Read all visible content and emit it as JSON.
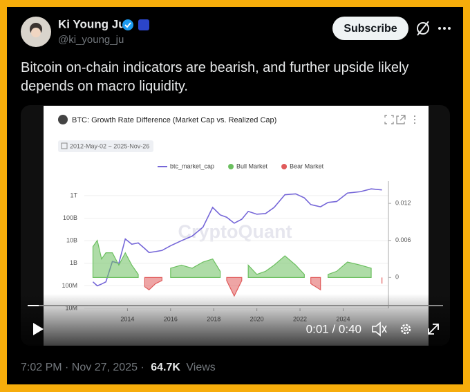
{
  "tweet": {
    "author": "Ki Young Ju",
    "handle": "@ki_young_ju",
    "button": "Subscribe",
    "text": "Bitcoin on-chain indicators are bearish, and further upside likely depends on macro liquidity.",
    "time": "7:02 PM · Nov 27, 2025 ·",
    "views_count": "64.7K",
    "views_label": "Views"
  },
  "video": {
    "time": "0:01 / 0:40"
  },
  "chart_data": {
    "type": "line",
    "title": "BTC: Growth Rate Difference (Market Cap vs. Realized Cap)",
    "date_range": "2012-May-02 ~ 2025-Nov-26",
    "watermark": "CryptoQuant",
    "x": [
      2012.4,
      2012.6,
      2012.8,
      2013.0,
      2013.3,
      2013.6,
      2013.9,
      2014.2,
      2014.5,
      2014.8,
      2015.0,
      2015.3,
      2015.6,
      2016.0,
      2016.5,
      2017.0,
      2017.5,
      2017.95,
      2018.3,
      2018.6,
      2018.95,
      2019.3,
      2019.6,
      2020.0,
      2020.4,
      2020.8,
      2021.3,
      2021.8,
      2022.2,
      2022.5,
      2022.95,
      2023.3,
      2023.7,
      2024.2,
      2024.8,
      2025.3,
      2025.8
    ],
    "series": [
      {
        "name": "btc_market_cap",
        "color": "#7566d8",
        "values": [
          150000000,
          100000000,
          120000000,
          150000000,
          1200000000,
          1000000000,
          12000000000,
          7000000000,
          8000000000,
          4500000000,
          3000000000,
          3300000000,
          3700000000,
          6000000000,
          10000000000,
          16000000000,
          40000000000,
          300000000000,
          140000000000,
          110000000000,
          60000000000,
          90000000000,
          200000000000,
          150000000000,
          160000000000,
          300000000000,
          1100000000000,
          1200000000000,
          800000000000,
          400000000000,
          320000000000,
          500000000000,
          550000000000,
          1300000000000,
          1500000000000,
          2000000000000,
          1800000000000
        ]
      },
      {
        "name": "Bull Market",
        "color": "#6bbf5f",
        "axis": "y2",
        "values": [
          0.005,
          0.006,
          0.003,
          0.004,
          0.004,
          0.002,
          0.004,
          0.002,
          0.0005,
          null,
          null,
          null,
          null,
          0.0015,
          0.002,
          0.0015,
          0.0025,
          0.003,
          0.001,
          null,
          null,
          null,
          0.002,
          0.0005,
          0.001,
          0.002,
          0.0035,
          0.002,
          0.0005,
          null,
          null,
          0.0005,
          0.001,
          0.0025,
          0.002,
          0.0015,
          null
        ]
      },
      {
        "name": "Bear Market",
        "color": "#e05b5b",
        "axis": "y2",
        "values": [
          null,
          null,
          null,
          null,
          null,
          null,
          null,
          null,
          null,
          -0.0015,
          -0.002,
          -0.001,
          -0.0005,
          null,
          null,
          null,
          null,
          null,
          null,
          -0.0005,
          -0.003,
          -0.0005,
          null,
          null,
          null,
          null,
          null,
          null,
          null,
          -0.001,
          -0.002,
          null,
          null,
          null,
          null,
          null,
          -0.001
        ]
      }
    ],
    "log_scale": true,
    "grid": true,
    "xlim": [
      2012,
      2026.1
    ],
    "xticks": [
      2014,
      2016,
      2018,
      2020,
      2022,
      2024
    ],
    "ylim": [
      10000000,
      4400000000000
    ],
    "yticks": [
      {
        "value": 10000000,
        "label": "10M"
      },
      {
        "value": 100000000,
        "label": "100M"
      },
      {
        "value": 1000000000,
        "label": "1B"
      },
      {
        "value": 10000000000,
        "label": "10B"
      },
      {
        "value": 100000000000,
        "label": "100B"
      },
      {
        "value": 1000000000000,
        "label": "1T"
      }
    ],
    "y2lim": [
      -0.005,
      0.0156
    ],
    "y2ticks": [
      0,
      0.006,
      0.012
    ]
  }
}
